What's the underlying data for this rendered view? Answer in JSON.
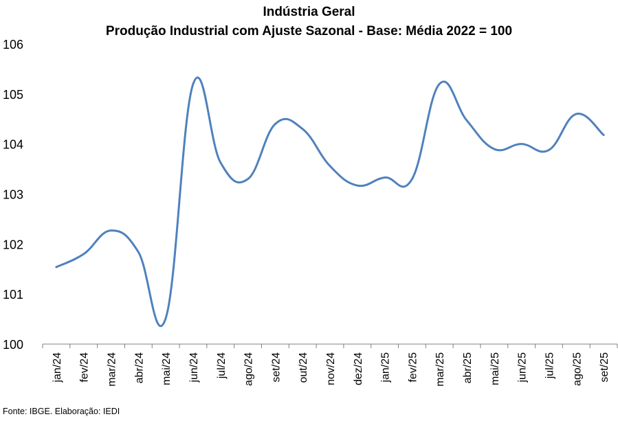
{
  "chart_data": {
    "type": "line",
    "title": "Indústria Geral",
    "subtitle": "Produção Industrial com Ajuste Sazonal - Base: Média 2022 = 100",
    "xlabel": "",
    "ylabel": "",
    "ylim": [
      100,
      106
    ],
    "yticks": [
      "100",
      "101",
      "102",
      "103",
      "104",
      "105",
      "106"
    ],
    "grid": false,
    "legend": false,
    "line_color": "#4F81BD",
    "categories": [
      "jan/24",
      "fev/24",
      "mar/24",
      "abr/24",
      "mai/24",
      "jun/24",
      "jul/24",
      "ago/24",
      "set/24",
      "out/24",
      "nov/24",
      "dez/24",
      "jan/25",
      "fev/25",
      "mar/25",
      "abr/25",
      "mai/25",
      "jun/25",
      "jul/25",
      "ago/25",
      "set/25"
    ],
    "series": [
      {
        "name": "Indústria Geral",
        "values": [
          101.54,
          101.8,
          102.27,
          101.84,
          100.52,
          105.2,
          103.63,
          103.3,
          104.4,
          104.3,
          103.56,
          103.17,
          103.33,
          103.3,
          105.2,
          104.47,
          103.9,
          104.0,
          103.88,
          104.6,
          104.18
        ]
      }
    ]
  },
  "source": "Fonte: IBGE. Elaboração: IEDI"
}
